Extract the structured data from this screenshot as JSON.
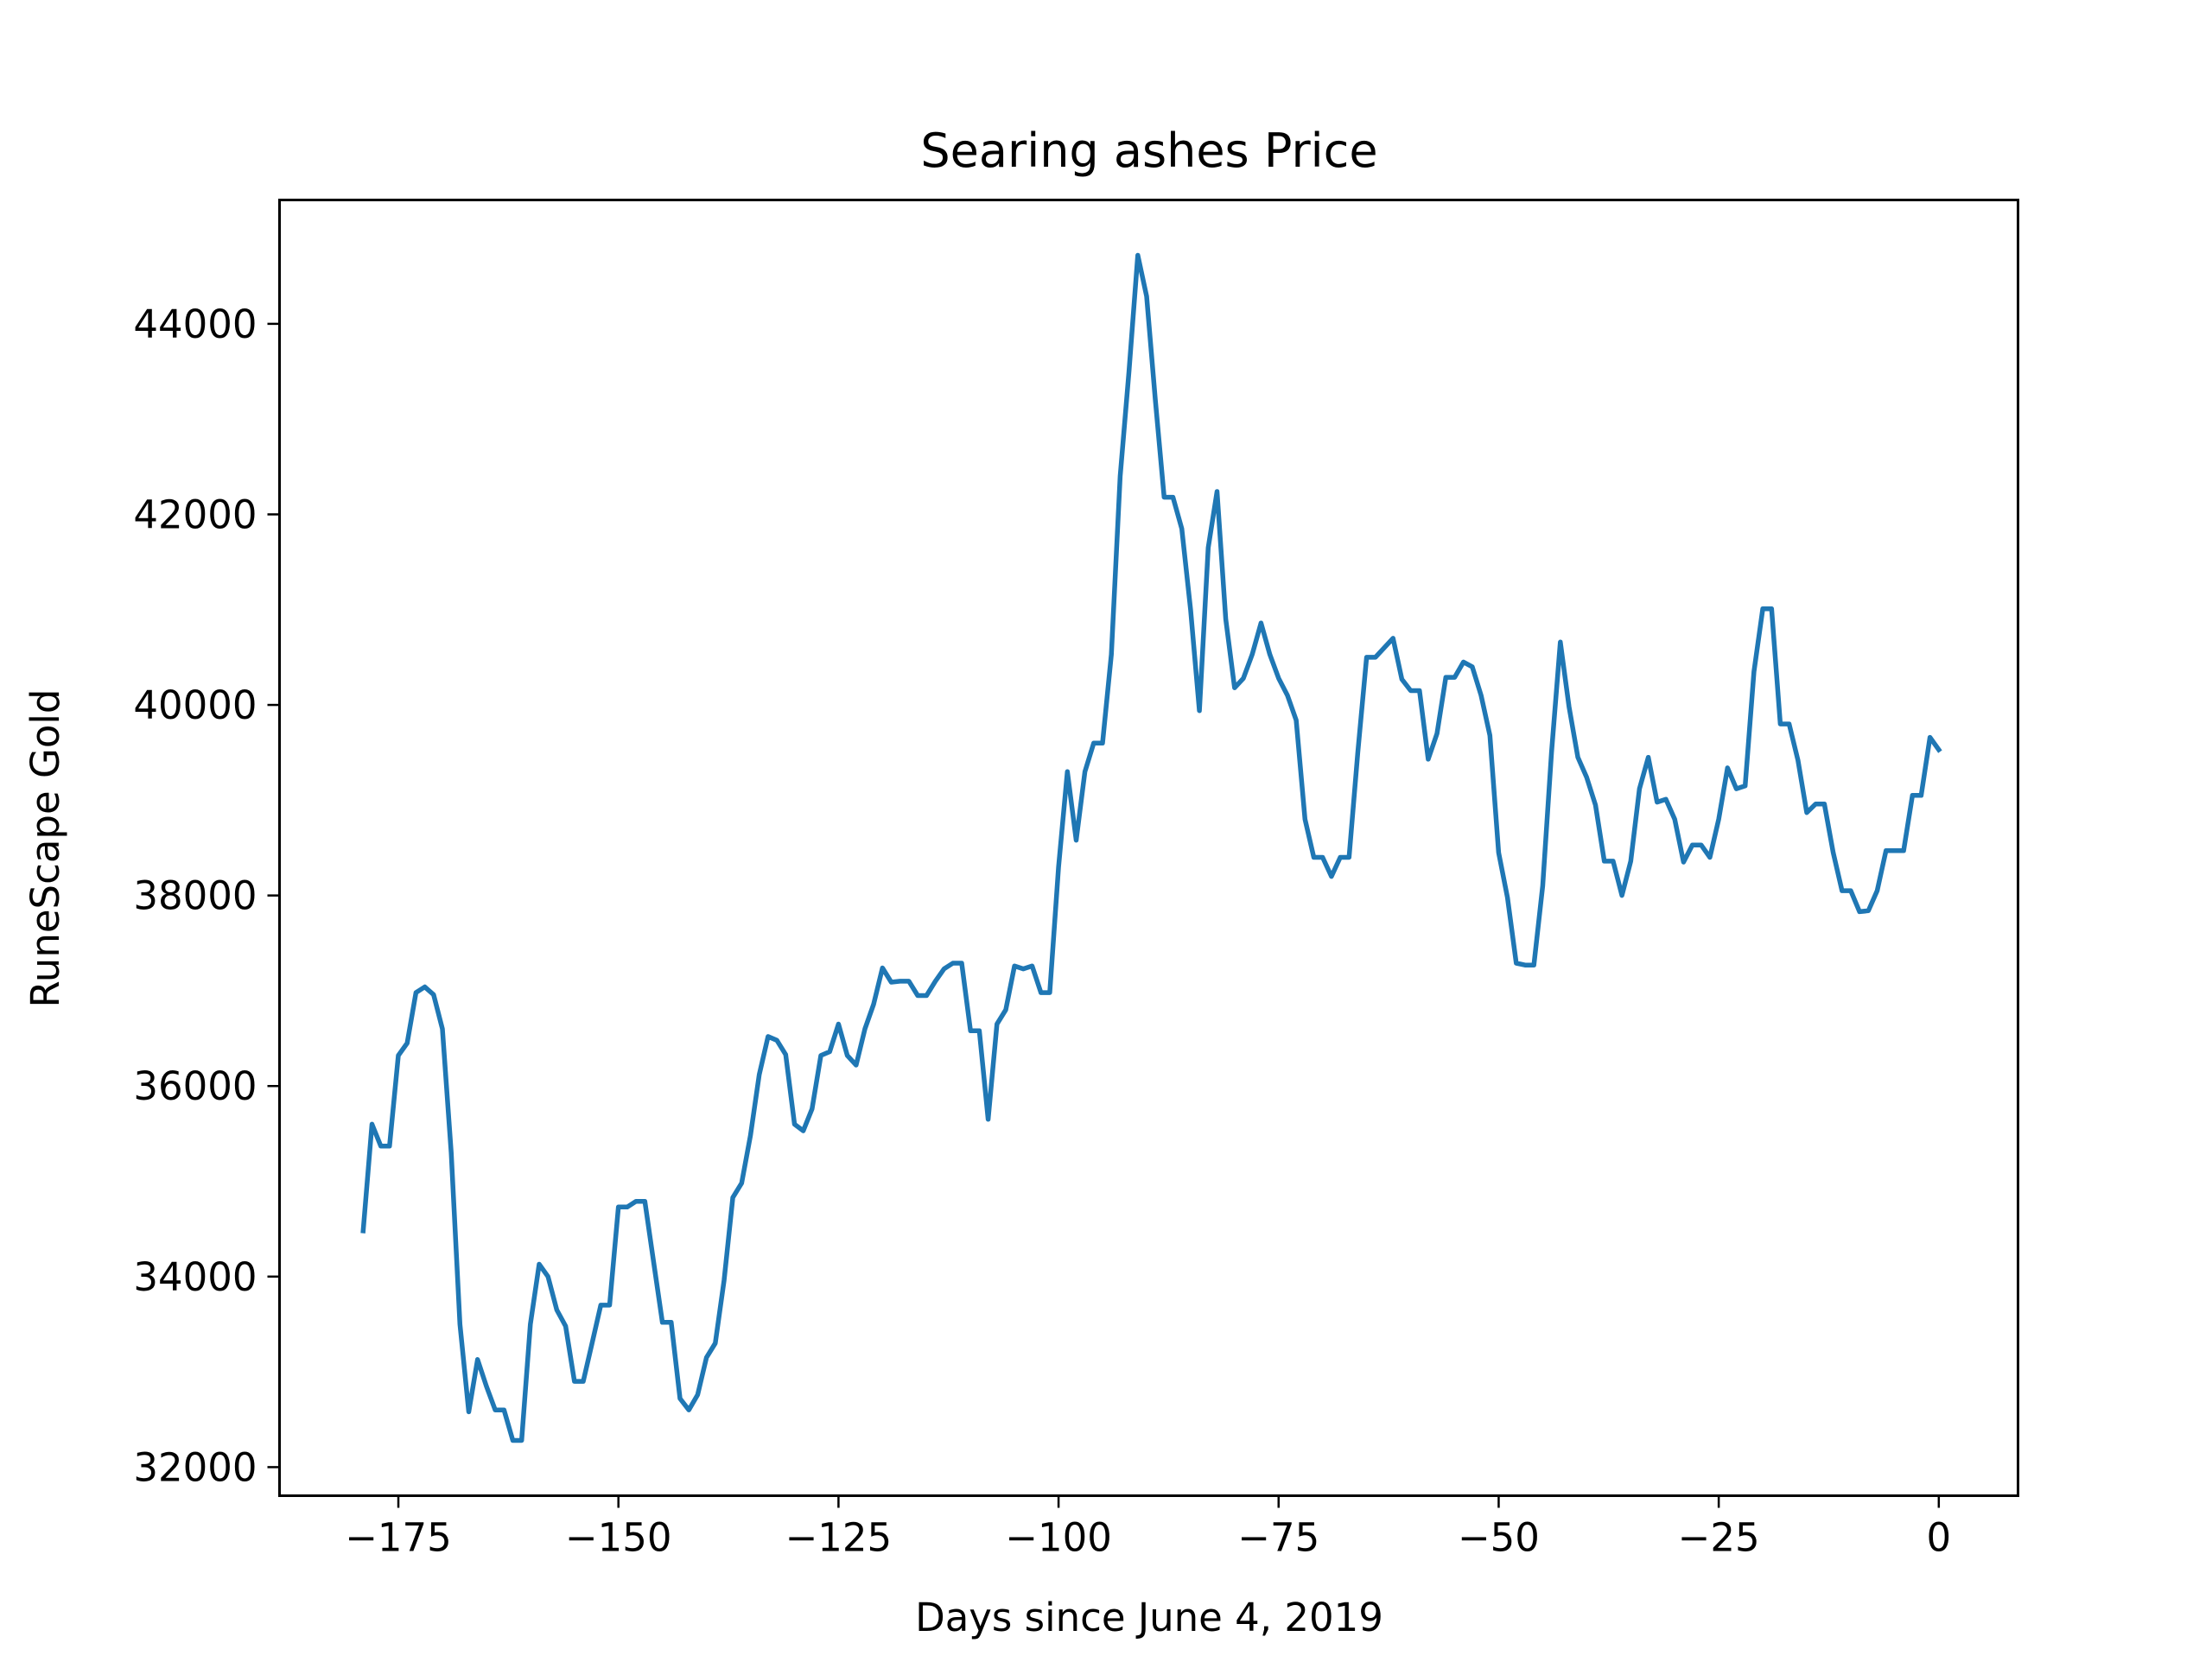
{
  "chart_data": {
    "type": "line",
    "title": "Searing ashes Price",
    "xlabel": "Days since June 4, 2019",
    "ylabel": "RuneScape Gold",
    "xlim": [
      -188.5,
      9
    ],
    "ylim": [
      31700,
      45300
    ],
    "xticks": [
      -175,
      -150,
      -125,
      -100,
      -75,
      -50,
      -25,
      0
    ],
    "xtick_labels": [
      "−175",
      "−150",
      "−125",
      "−100",
      "−75",
      "−50",
      "−25",
      "0"
    ],
    "yticks": [
      32000,
      34000,
      36000,
      38000,
      40000,
      42000,
      44000
    ],
    "ytick_labels": [
      "32000",
      "34000",
      "36000",
      "38000",
      "40000",
      "42000",
      "44000"
    ],
    "grid": false,
    "series": [
      {
        "color": "#1f77b4",
        "x": [
          -179,
          -178,
          -177,
          -176,
          -175,
          -174,
          -173,
          -172,
          -171,
          -170,
          -169,
          -168,
          -167,
          -166,
          -165,
          -164,
          -163,
          -162,
          -161,
          -160,
          -159,
          -158,
          -157,
          -156,
          -155,
          -154,
          -153,
          -152,
          -151,
          -150,
          -149,
          -148,
          -147,
          -146,
          -145,
          -144,
          -143,
          -142,
          -141,
          -140,
          -139,
          -138,
          -137,
          -136,
          -135,
          -134,
          -133,
          -132,
          -131,
          -130,
          -129,
          -128,
          -127,
          -126,
          -125,
          -124,
          -123,
          -122,
          -121,
          -120,
          -119,
          -118,
          -117,
          -116,
          -115,
          -114,
          -113,
          -112,
          -111,
          -110,
          -109,
          -108,
          -107,
          -106,
          -105,
          -104,
          -103,
          -102,
          -101,
          -100,
          -99,
          -98,
          -97,
          -96,
          -95,
          -94,
          -93,
          -92,
          -91,
          -90,
          -89,
          -88,
          -87,
          -86,
          -85,
          -84,
          -83,
          -82,
          -81,
          -80,
          -79,
          -78,
          -77,
          -76,
          -75,
          -74,
          -73,
          -72,
          -71,
          -70,
          -69,
          -68,
          -67,
          -66,
          -65,
          -64,
          -63,
          -62,
          -61,
          -60,
          -59,
          -58,
          -57,
          -56,
          -55,
          -54,
          -53,
          -52,
          -51,
          -50,
          -49,
          -48,
          -47,
          -46,
          -45,
          -44,
          -43,
          -42,
          -41,
          -40,
          -39,
          -38,
          -37,
          -36,
          -35,
          -34,
          -33,
          -32,
          -31,
          -30,
          -29,
          -28,
          -27,
          -26,
          -25,
          -24,
          -23,
          -22,
          -21,
          -20,
          -19,
          -18,
          -17,
          -16,
          -15,
          -14,
          -13,
          -12,
          -11,
          -10,
          -9,
          -8,
          -7,
          -6,
          -5,
          -4,
          -3,
          -2,
          -1,
          0
        ],
        "y": [
          34480,
          35600,
          35370,
          35370,
          36320,
          36450,
          36980,
          37040,
          36960,
          36600,
          35300,
          33500,
          32580,
          33130,
          32850,
          32600,
          32600,
          32280,
          32280,
          33500,
          34130,
          34000,
          33650,
          33480,
          32900,
          32900,
          33300,
          33700,
          33700,
          34730,
          34730,
          34790,
          34790,
          34150,
          33520,
          33520,
          32720,
          32600,
          32760,
          33150,
          33300,
          33960,
          34830,
          34980,
          35480,
          36120,
          36520,
          36480,
          36330,
          35600,
          35530,
          35760,
          36320,
          36360,
          36650,
          36320,
          36220,
          36600,
          36860,
          37240,
          37090,
          37100,
          37100,
          36950,
          36950,
          37100,
          37230,
          37290,
          37290,
          36580,
          36580,
          35650,
          36650,
          36800,
          37260,
          37230,
          37260,
          36980,
          36980,
          38300,
          39300,
          38580,
          39300,
          39600,
          39600,
          40530,
          42400,
          43500,
          44720,
          44290,
          43200,
          42180,
          42180,
          41850,
          41000,
          39940,
          41650,
          42240,
          40900,
          40180,
          40280,
          40530,
          40860,
          40530,
          40280,
          40100,
          39840,
          38800,
          38400,
          38400,
          38200,
          38400,
          38400,
          39500,
          40500,
          40500,
          40600,
          40700,
          40270,
          40150,
          40150,
          39430,
          39700,
          40290,
          40290,
          40450,
          40400,
          40100,
          39680,
          38450,
          37980,
          37290,
          37270,
          37270,
          38100,
          39500,
          40660,
          39980,
          39450,
          39240,
          38950,
          38360,
          38360,
          38000,
          38360,
          39120,
          39450,
          38980,
          39010,
          38800,
          38350,
          38530,
          38530,
          38400,
          38800,
          39340,
          39120,
          39150,
          40350,
          41010,
          41010,
          39800,
          39800,
          39420,
          38870,
          38960,
          38960,
          38450,
          38050,
          38050,
          37830,
          37840,
          38050,
          38470,
          38470,
          38470,
          39050,
          39050,
          39660,
          39530
        ]
      }
    ]
  }
}
